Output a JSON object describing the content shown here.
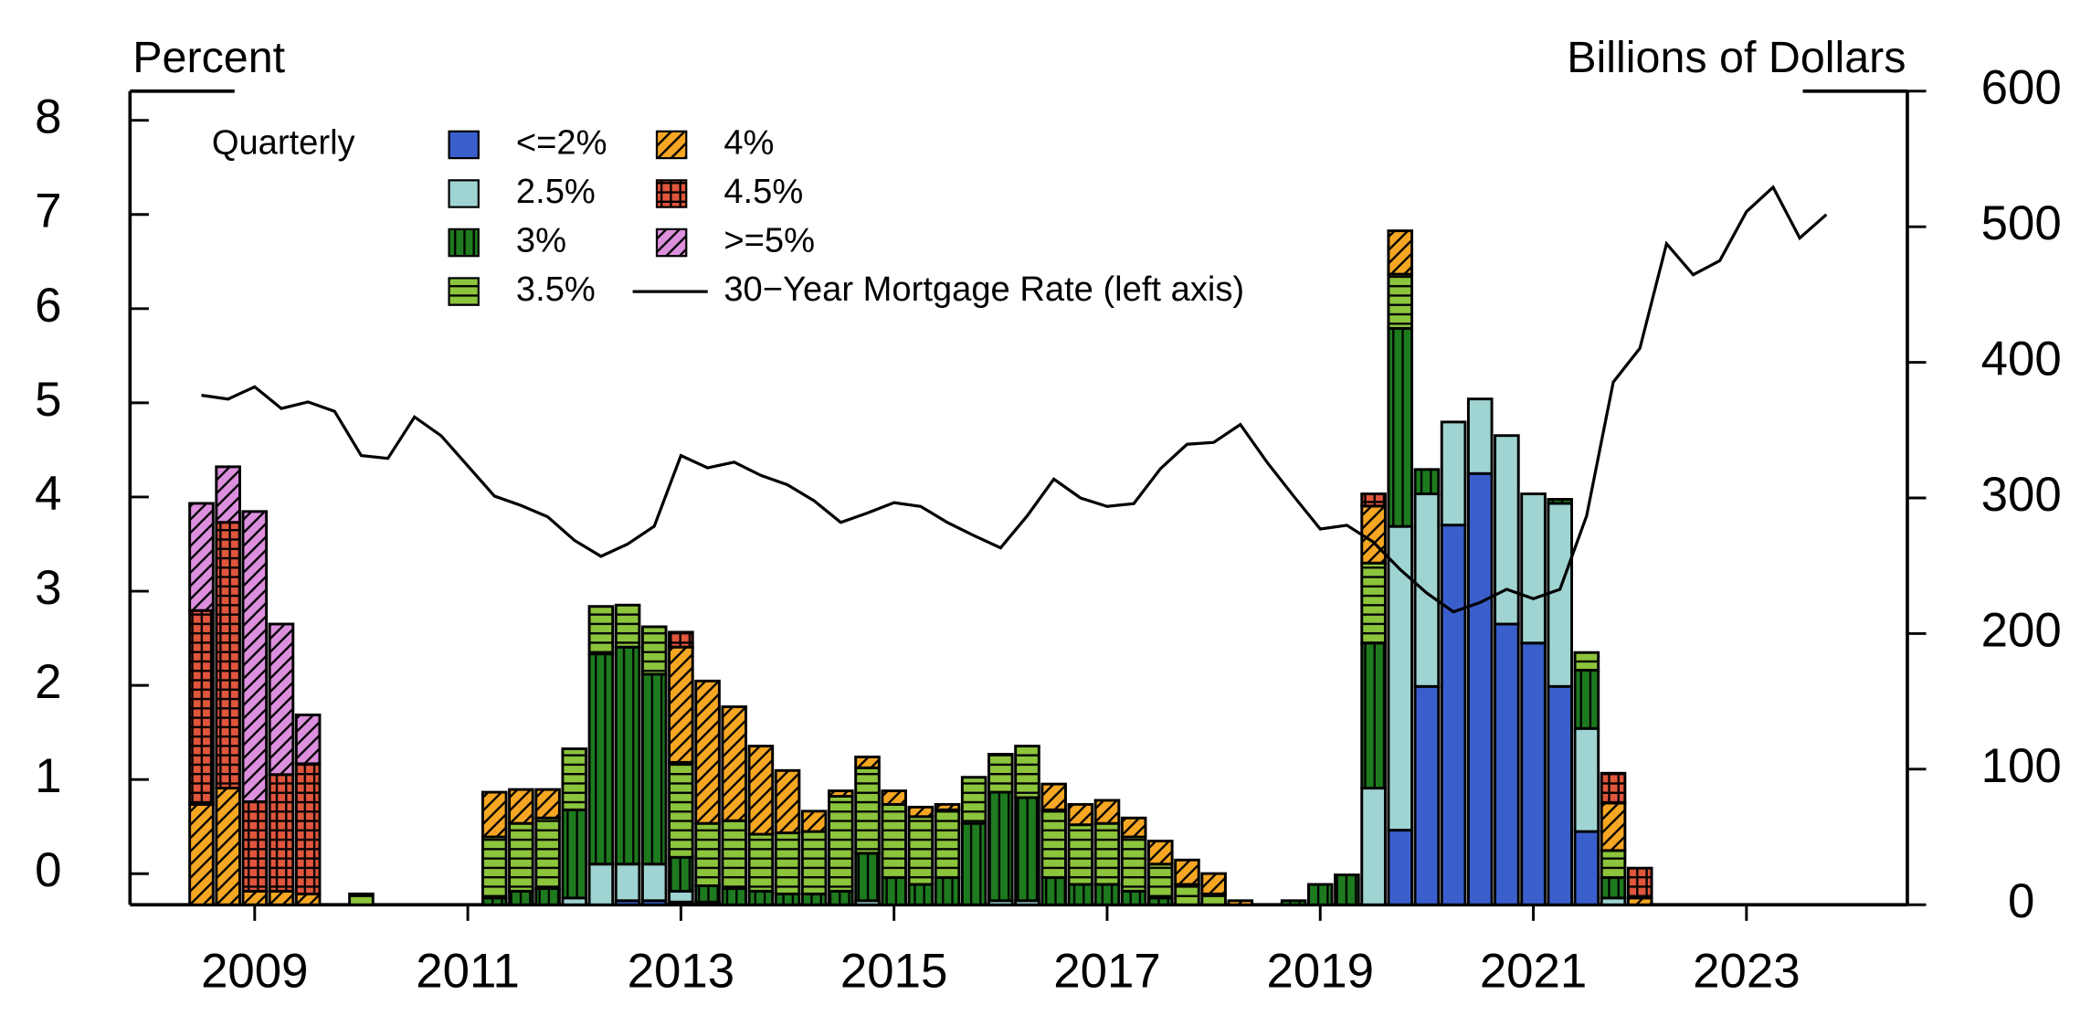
{
  "chart_data": {
    "type": "bar",
    "y_label": "Percent",
    "y2_label": "Billions of Dollars",
    "legend_title": "Quarterly",
    "x": [
      2008.5,
      2008.75,
      2009,
      2009.25,
      2009.5,
      2009.75,
      2010,
      2010.25,
      2010.5,
      2010.75,
      2011,
      2011.25,
      2011.5,
      2011.75,
      2012,
      2012.25,
      2012.5,
      2012.75,
      2013,
      2013.25,
      2013.5,
      2013.75,
      2014,
      2014.25,
      2014.5,
      2014.75,
      2015,
      2015.25,
      2015.5,
      2015.75,
      2016,
      2016.25,
      2016.5,
      2016.75,
      2017,
      2017.25,
      2017.5,
      2017.75,
      2018,
      2018.25,
      2018.5,
      2018.75,
      2019,
      2019.25,
      2019.5,
      2019.75,
      2020,
      2020.25,
      2020.5,
      2020.75,
      2021,
      2021.25,
      2021.5,
      2021.75,
      2022,
      2022.25,
      2022.5,
      2022.75,
      2023,
      2023.25,
      2023.5,
      2023.75
    ],
    "xlim": [
      2007.83,
      2024.51
    ],
    "xticks": [
      2009,
      2011,
      2013,
      2015,
      2017,
      2019,
      2021,
      2023
    ],
    "ylim": [
      -0.33,
      8.31
    ],
    "yticks": [
      0,
      1,
      2,
      3,
      4,
      5,
      6,
      7,
      8
    ],
    "y2lim": [
      0,
      600
    ],
    "y2ticks": [
      0,
      100,
      200,
      300,
      400,
      500,
      600
    ],
    "series": [
      {
        "name": "<=2%",
        "color": "#3a5fcd",
        "axis": "y2",
        "values": [
          0,
          0,
          0,
          0,
          0,
          0,
          0,
          0,
          0,
          0,
          0,
          0,
          0,
          0,
          0,
          0,
          3,
          3,
          2,
          2,
          0,
          0,
          0,
          0,
          0,
          0,
          0,
          0,
          0,
          0,
          0,
          0,
          0,
          0,
          0,
          0,
          0,
          0,
          0,
          0,
          0,
          0,
          0,
          0,
          0,
          55,
          161,
          280,
          318,
          207,
          193,
          161,
          54,
          0,
          0,
          0,
          0,
          0,
          0,
          0,
          0,
          0
        ]
      },
      {
        "name": "2.5%",
        "color": "#9fd4d2",
        "axis": "y2",
        "values": [
          0,
          0,
          0,
          0,
          0,
          0,
          0,
          0,
          0,
          0,
          0,
          0,
          0,
          0,
          5,
          30,
          27,
          27,
          8,
          0,
          0,
          0,
          0,
          0,
          0,
          3,
          0,
          0,
          0,
          0,
          3,
          3,
          0,
          0,
          0,
          0,
          0,
          0,
          0,
          0,
          0,
          0,
          0,
          0,
          86,
          224,
          142,
          76,
          55,
          139,
          110,
          135,
          76,
          5,
          0,
          0,
          0,
          0,
          0,
          0,
          0,
          0
        ]
      },
      {
        "name": "3%",
        "color": "#1e7a1e",
        "axis": "y2",
        "hatch": "vertical",
        "values": [
          0,
          0,
          0,
          0,
          0,
          0,
          0,
          0,
          0,
          0,
          0,
          5,
          10,
          12,
          65,
          155,
          160,
          140,
          25,
          12,
          12,
          10,
          8,
          8,
          10,
          35,
          20,
          15,
          20,
          60,
          80,
          76,
          20,
          15,
          15,
          10,
          5,
          0,
          0,
          0,
          0,
          3,
          15,
          22,
          107,
          146,
          18,
          0,
          0,
          0,
          0,
          3,
          43,
          15,
          0,
          0,
          0,
          0,
          0,
          0,
          0,
          0
        ]
      },
      {
        "name": "3.5%",
        "color": "#8cc43c",
        "axis": "y2",
        "hatch": "horizontal",
        "values": [
          0,
          0,
          0,
          0,
          0,
          0,
          8,
          0,
          0,
          0,
          0,
          45,
          50,
          52,
          45,
          35,
          31,
          35,
          70,
          46,
          50,
          42,
          45,
          46,
          70,
          63,
          54,
          50,
          50,
          34,
          28,
          38,
          50,
          44,
          45,
          40,
          25,
          15,
          8,
          0,
          0,
          0,
          0,
          0,
          59,
          40,
          0,
          0,
          0,
          0,
          0,
          0,
          13,
          20,
          0,
          0,
          0,
          0,
          0,
          0,
          0,
          0
        ]
      },
      {
        "name": "4%",
        "color": "#f5a623",
        "axis": "y2",
        "hatch": "diagonal",
        "values": [
          74,
          86,
          10,
          10,
          8,
          0,
          0,
          0,
          0,
          0,
          0,
          33,
          25,
          21,
          0,
          0,
          0,
          0,
          85,
          105,
          84,
          65,
          46,
          15,
          4,
          8,
          10,
          7,
          4,
          0,
          0,
          0,
          19,
          15,
          17,
          14,
          17,
          18,
          15,
          3,
          0,
          0,
          0,
          0,
          42,
          32,
          0,
          0,
          0,
          0,
          0,
          0,
          0,
          35,
          5,
          0,
          0,
          0,
          0,
          0,
          0,
          0
        ]
      },
      {
        "name": "4.5%",
        "color": "#e0553c",
        "axis": "y2",
        "hatch": "grid",
        "values": [
          143,
          196,
          66,
          86,
          96,
          0,
          0,
          0,
          0,
          0,
          0,
          0,
          0,
          0,
          0,
          0,
          0,
          0,
          11,
          0,
          0,
          0,
          0,
          0,
          0,
          0,
          0,
          0,
          0,
          0,
          0,
          0,
          0,
          0,
          0,
          0,
          0,
          0,
          0,
          0,
          0,
          0,
          0,
          0,
          9,
          0,
          0,
          0,
          0,
          0,
          0,
          0,
          0,
          22,
          22,
          0,
          0,
          0,
          0,
          0,
          0,
          0
        ]
      },
      {
        "name": ">=5%",
        "color": "#dc8fdc",
        "axis": "y2",
        "hatch": "diagonal",
        "values": [
          79,
          41,
          214,
          111,
          36,
          0,
          0,
          0,
          0,
          0,
          0,
          0,
          0,
          0,
          0,
          0,
          0,
          0,
          0,
          0,
          0,
          0,
          0,
          0,
          0,
          0,
          0,
          0,
          0,
          0,
          0,
          0,
          0,
          0,
          0,
          0,
          0,
          0,
          0,
          0,
          0,
          0,
          0,
          0,
          0,
          0,
          0,
          0,
          0,
          0,
          0,
          0,
          0,
          0,
          0,
          0,
          0,
          0,
          0,
          0,
          0,
          0
        ]
      },
      {
        "name": "30−Year Mortgage Rate (left axis)",
        "color": "#000000",
        "type": "line",
        "values": [
          5.08,
          5.04,
          5.17,
          4.94,
          5.01,
          4.91,
          4.44,
          4.41,
          4.85,
          4.65,
          4.33,
          4.01,
          3.91,
          3.79,
          3.54,
          3.37,
          3.5,
          3.69,
          4.44,
          4.31,
          4.37,
          4.23,
          4.13,
          3.96,
          3.73,
          3.83,
          3.94,
          3.9,
          3.73,
          3.59,
          3.46,
          3.8,
          4.19,
          3.99,
          3.9,
          3.93,
          4.3,
          4.56,
          4.58,
          4.77,
          4.37,
          4.01,
          3.66,
          3.7,
          3.52,
          3.23,
          2.98,
          2.78,
          2.88,
          3.02,
          2.92,
          3.02,
          3.8,
          5.22,
          5.58,
          6.69,
          6.36,
          6.51,
          7.03,
          7.29,
          6.75,
          7.0
        ]
      }
    ]
  }
}
